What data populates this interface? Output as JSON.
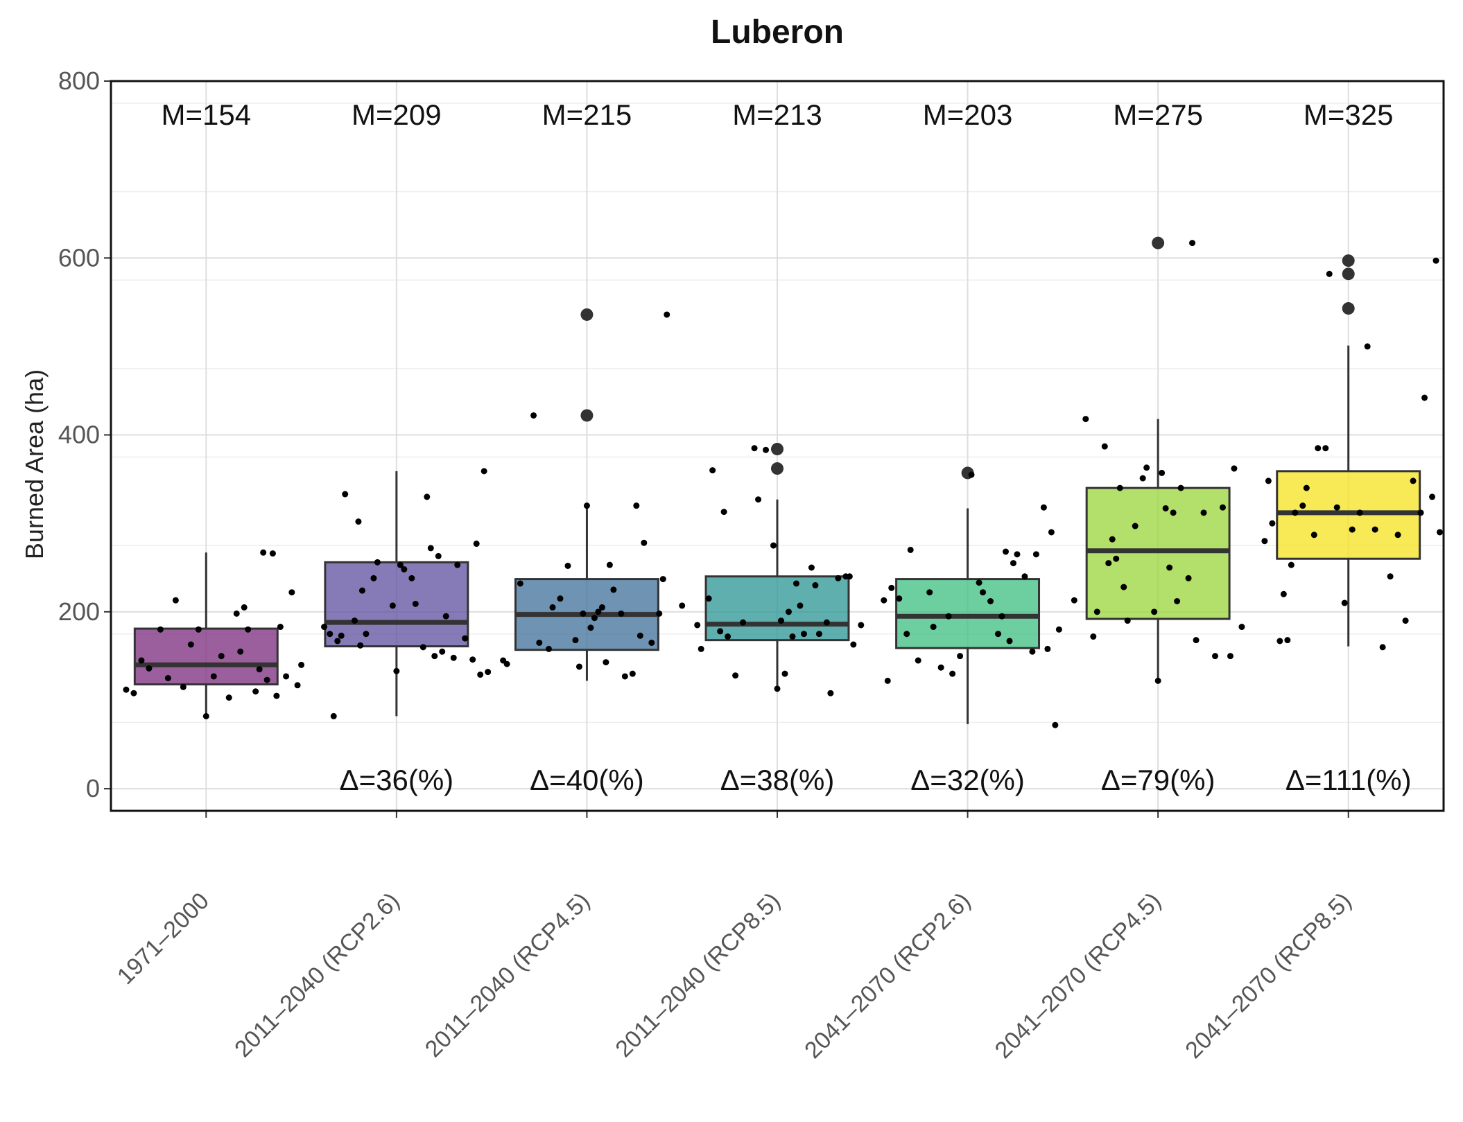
{
  "chart_data": {
    "type": "box",
    "title": "Luberon",
    "xlabel": "",
    "ylabel": "Burned Area (ha)",
    "ylim": [
      -25,
      800
    ],
    "yticks": [
      0,
      200,
      400,
      600,
      800
    ],
    "grid": true,
    "categories": [
      "1971–2000",
      "2011–2040 (RCP2.6)",
      "2011–2040 (RCP4.5)",
      "2011–2040 (RCP8.5)",
      "2041–2070 (RCP2.6)",
      "2041–2070 (RCP4.5)",
      "2041–2070 (RCP8.5)"
    ],
    "colors": [
      "#7b2a7e",
      "#5e4f9e",
      "#3f6f99",
      "#2a9494",
      "#3cbf7f",
      "#9ad43a",
      "#f5e11e"
    ],
    "mean_labels": [
      "M=154",
      "M=209",
      "M=215",
      "M=213",
      "M=203",
      "M=275",
      "M=325"
    ],
    "delta_labels": [
      "",
      "Δ=36(%)",
      "Δ=40(%)",
      "Δ=38(%)",
      "Δ=32(%)",
      "Δ=79(%)",
      "Δ=111(%)"
    ],
    "boxes": [
      {
        "q1": 118,
        "median": 140,
        "q3": 181,
        "whisker_low": 80,
        "whisker_high": 267,
        "outliers": []
      },
      {
        "q1": 161,
        "median": 188,
        "q3": 256,
        "whisker_low": 82,
        "whisker_high": 359,
        "outliers": []
      },
      {
        "q1": 157,
        "median": 197,
        "q3": 237,
        "whisker_low": 122,
        "whisker_high": 320,
        "outliers": [
          422,
          536
        ]
      },
      {
        "q1": 168,
        "median": 186,
        "q3": 240,
        "whisker_low": 112,
        "whisker_high": 327,
        "outliers": [
          362,
          384
        ]
      },
      {
        "q1": 159,
        "median": 195,
        "q3": 237,
        "whisker_low": 73,
        "whisker_high": 317,
        "outliers": [
          357
        ]
      },
      {
        "q1": 192,
        "median": 269,
        "q3": 340,
        "whisker_low": 122,
        "whisker_high": 418,
        "outliers": [
          617
        ]
      },
      {
        "q1": 260,
        "median": 312,
        "q3": 359,
        "whisker_low": 161,
        "whisker_high": 501,
        "outliers": [
          543,
          582,
          597
        ]
      }
    ],
    "points": [
      [
        [
          -0.42,
          112
        ],
        [
          -0.38,
          108
        ],
        [
          -0.34,
          145
        ],
        [
          -0.3,
          136
        ],
        [
          -0.24,
          180
        ],
        [
          -0.2,
          125
        ],
        [
          -0.16,
          213
        ],
        [
          -0.12,
          115
        ],
        [
          -0.08,
          163
        ],
        [
          -0.04,
          180
        ],
        [
          0.0,
          82
        ],
        [
          0.04,
          127
        ],
        [
          0.08,
          150
        ],
        [
          0.12,
          103
        ],
        [
          0.16,
          198
        ],
        [
          0.18,
          155
        ],
        [
          0.2,
          205
        ],
        [
          0.22,
          180
        ],
        [
          0.26,
          110
        ],
        [
          0.28,
          135
        ],
        [
          0.3,
          267
        ],
        [
          0.32,
          123
        ],
        [
          0.35,
          266
        ],
        [
          0.37,
          105
        ],
        [
          0.39,
          183
        ],
        [
          0.42,
          127
        ],
        [
          0.45,
          222
        ],
        [
          0.48,
          117
        ],
        [
          0.5,
          140
        ]
      ],
      [
        [
          -0.38,
          183
        ],
        [
          -0.35,
          175
        ],
        [
          -0.33,
          82
        ],
        [
          -0.31,
          167
        ],
        [
          -0.29,
          173
        ],
        [
          -0.27,
          333
        ],
        [
          -0.22,
          190
        ],
        [
          -0.2,
          302
        ],
        [
          -0.19,
          162
        ],
        [
          -0.18,
          224
        ],
        [
          -0.16,
          175
        ],
        [
          -0.12,
          238
        ],
        [
          -0.1,
          256
        ],
        [
          -0.02,
          207
        ],
        [
          0.0,
          133
        ],
        [
          0.02,
          253
        ],
        [
          0.04,
          248
        ],
        [
          0.08,
          238
        ],
        [
          0.1,
          209
        ],
        [
          0.14,
          160
        ],
        [
          0.16,
          330
        ],
        [
          0.18,
          272
        ],
        [
          0.2,
          150
        ],
        [
          0.22,
          263
        ],
        [
          0.24,
          155
        ],
        [
          0.26,
          195
        ],
        [
          0.3,
          148
        ],
        [
          0.32,
          253
        ],
        [
          0.36,
          170
        ],
        [
          0.4,
          146
        ],
        [
          0.42,
          277
        ],
        [
          0.44,
          129
        ],
        [
          0.46,
          359
        ],
        [
          0.48,
          132
        ]
      ],
      [
        [
          -0.44,
          145
        ],
        [
          -0.42,
          141
        ],
        [
          -0.35,
          232
        ],
        [
          -0.28,
          422
        ],
        [
          -0.25,
          165
        ],
        [
          -0.2,
          158
        ],
        [
          -0.18,
          205
        ],
        [
          -0.14,
          215
        ],
        [
          -0.1,
          252
        ],
        [
          -0.06,
          168
        ],
        [
          -0.04,
          138
        ],
        [
          -0.02,
          198
        ],
        [
          0.0,
          320
        ],
        [
          0.02,
          182
        ],
        [
          0.04,
          193
        ],
        [
          0.06,
          200
        ],
        [
          0.08,
          205
        ],
        [
          0.1,
          143
        ],
        [
          0.12,
          253
        ],
        [
          0.14,
          225
        ],
        [
          0.18,
          198
        ],
        [
          0.2,
          127
        ],
        [
          0.24,
          130
        ],
        [
          0.26,
          320
        ],
        [
          0.28,
          173
        ],
        [
          0.3,
          278
        ],
        [
          0.34,
          165
        ],
        [
          0.38,
          198
        ],
        [
          0.4,
          237
        ],
        [
          0.42,
          536
        ],
        [
          0.5,
          207
        ]
      ],
      [
        [
          -0.42,
          185
        ],
        [
          -0.4,
          158
        ],
        [
          -0.36,
          215
        ],
        [
          -0.34,
          360
        ],
        [
          -0.3,
          178
        ],
        [
          -0.28,
          313
        ],
        [
          -0.26,
          172
        ],
        [
          -0.22,
          128
        ],
        [
          -0.18,
          188
        ],
        [
          -0.12,
          385
        ],
        [
          -0.1,
          327
        ],
        [
          -0.06,
          383
        ],
        [
          -0.02,
          275
        ],
        [
          0.0,
          113
        ],
        [
          0.02,
          190
        ],
        [
          0.04,
          130
        ],
        [
          0.06,
          200
        ],
        [
          0.08,
          172
        ],
        [
          0.1,
          232
        ],
        [
          0.12,
          207
        ],
        [
          0.14,
          175
        ],
        [
          0.18,
          250
        ],
        [
          0.2,
          230
        ],
        [
          0.22,
          175
        ],
        [
          0.26,
          188
        ],
        [
          0.28,
          108
        ],
        [
          0.32,
          238
        ],
        [
          0.36,
          240
        ],
        [
          0.38,
          240
        ],
        [
          0.4,
          163
        ],
        [
          0.44,
          185
        ]
      ],
      [
        [
          -0.44,
          213
        ],
        [
          -0.42,
          122
        ],
        [
          -0.4,
          227
        ],
        [
          -0.36,
          215
        ],
        [
          -0.32,
          175
        ],
        [
          -0.3,
          270
        ],
        [
          -0.26,
          145
        ],
        [
          -0.2,
          222
        ],
        [
          -0.18,
          183
        ],
        [
          -0.14,
          137
        ],
        [
          -0.1,
          195
        ],
        [
          -0.08,
          130
        ],
        [
          -0.04,
          150
        ],
        [
          0.02,
          355
        ],
        [
          0.06,
          233
        ],
        [
          0.08,
          222
        ],
        [
          0.12,
          212
        ],
        [
          0.16,
          175
        ],
        [
          0.18,
          195
        ],
        [
          0.2,
          268
        ],
        [
          0.22,
          167
        ],
        [
          0.24,
          255
        ],
        [
          0.26,
          265
        ],
        [
          0.3,
          240
        ],
        [
          0.34,
          155
        ],
        [
          0.36,
          265
        ],
        [
          0.4,
          318
        ],
        [
          0.42,
          158
        ],
        [
          0.44,
          290
        ],
        [
          0.46,
          72
        ],
        [
          0.48,
          180
        ]
      ],
      [
        [
          -0.44,
          213
        ],
        [
          -0.38,
          418
        ],
        [
          -0.34,
          172
        ],
        [
          -0.32,
          200
        ],
        [
          -0.28,
          387
        ],
        [
          -0.26,
          255
        ],
        [
          -0.24,
          282
        ],
        [
          -0.22,
          260
        ],
        [
          -0.2,
          340
        ],
        [
          -0.18,
          228
        ],
        [
          -0.16,
          190
        ],
        [
          -0.12,
          297
        ],
        [
          -0.08,
          351
        ],
        [
          -0.06,
          363
        ],
        [
          -0.02,
          200
        ],
        [
          0.0,
          122
        ],
        [
          0.02,
          357
        ],
        [
          0.04,
          317
        ],
        [
          0.06,
          250
        ],
        [
          0.08,
          312
        ],
        [
          0.1,
          212
        ],
        [
          0.12,
          340
        ],
        [
          0.16,
          238
        ],
        [
          0.18,
          617
        ],
        [
          0.2,
          168
        ],
        [
          0.24,
          312
        ],
        [
          0.3,
          150
        ],
        [
          0.34,
          318
        ],
        [
          0.38,
          150
        ],
        [
          0.4,
          362
        ],
        [
          0.44,
          183
        ]
      ],
      [
        [
          -0.44,
          280
        ],
        [
          -0.42,
          348
        ],
        [
          -0.4,
          300
        ],
        [
          -0.36,
          167
        ],
        [
          -0.34,
          220
        ],
        [
          -0.32,
          168
        ],
        [
          -0.3,
          253
        ],
        [
          -0.28,
          312
        ],
        [
          -0.24,
          320
        ],
        [
          -0.22,
          340
        ],
        [
          -0.18,
          287
        ],
        [
          -0.16,
          385
        ],
        [
          -0.12,
          385
        ],
        [
          -0.1,
          582
        ],
        [
          -0.06,
          318
        ],
        [
          -0.02,
          210
        ],
        [
          0.02,
          293
        ],
        [
          0.06,
          312
        ],
        [
          0.1,
          500
        ],
        [
          0.14,
          293
        ],
        [
          0.18,
          160
        ],
        [
          0.22,
          240
        ],
        [
          0.26,
          287
        ],
        [
          0.3,
          190
        ],
        [
          0.34,
          348
        ],
        [
          0.38,
          312
        ],
        [
          0.4,
          442
        ],
        [
          0.44,
          330
        ],
        [
          0.46,
          597
        ],
        [
          0.48,
          290
        ]
      ]
    ]
  }
}
